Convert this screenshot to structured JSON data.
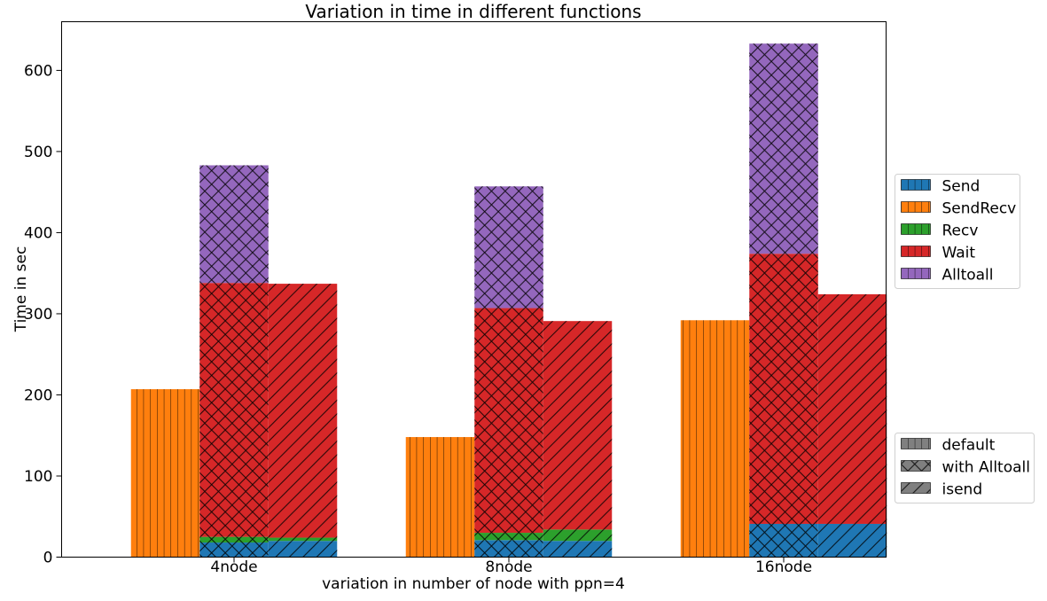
{
  "chart_data": {
    "type": "bar",
    "title": "Variation in time in different functions",
    "xlabel": "variation in number of node with ppn=4",
    "ylabel": "Time in sec",
    "categories": [
      "4node",
      "8node",
      "16node"
    ],
    "ylim": [
      0,
      660
    ],
    "yticks": [
      0,
      100,
      200,
      300,
      400,
      500,
      600
    ],
    "grid": false,
    "layout": "grouped-stacked",
    "series_legend_position": "right-upper",
    "variant_legend_position": "right-lower",
    "series": [
      {
        "name": "Send",
        "color": "#1f77b4"
      },
      {
        "name": "SendRecv",
        "color": "#ff7f0e"
      },
      {
        "name": "Recv",
        "color": "#2ca02c"
      },
      {
        "name": "Wait",
        "color": "#d62728"
      },
      {
        "name": "Alltoall",
        "color": "#9467bd"
      }
    ],
    "variants": [
      {
        "name": "default",
        "hatch": "vertical-lines",
        "stacks": [
          {
            "Send": 0,
            "SendRecv": 207,
            "Recv": 0,
            "Wait": 0,
            "Alltoall": 0
          },
          {
            "Send": 0,
            "SendRecv": 148,
            "Recv": 0,
            "Wait": 0,
            "Alltoall": 0
          },
          {
            "Send": 0,
            "SendRecv": 292,
            "Recv": 0,
            "Wait": 0,
            "Alltoall": 0
          }
        ]
      },
      {
        "name": "with Alltoall",
        "hatch": "cross-hatch",
        "stacks": [
          {
            "Send": 18,
            "SendRecv": 0,
            "Recv": 7,
            "Wait": 313,
            "Alltoall": 145
          },
          {
            "Send": 21,
            "SendRecv": 0,
            "Recv": 9,
            "Wait": 277,
            "Alltoall": 150
          },
          {
            "Send": 41,
            "SendRecv": 0,
            "Recv": 0,
            "Wait": 333,
            "Alltoall": 259
          }
        ]
      },
      {
        "name": "isend",
        "hatch": "diagonal-lines",
        "stacks": [
          {
            "Send": 20,
            "SendRecv": 0,
            "Recv": 4,
            "Wait": 313,
            "Alltoall": 0
          },
          {
            "Send": 20,
            "SendRecv": 0,
            "Recv": 14,
            "Wait": 257,
            "Alltoall": 0
          },
          {
            "Send": 41,
            "SendRecv": 0,
            "Recv": 0,
            "Wait": 283,
            "Alltoall": 0
          }
        ]
      }
    ]
  }
}
